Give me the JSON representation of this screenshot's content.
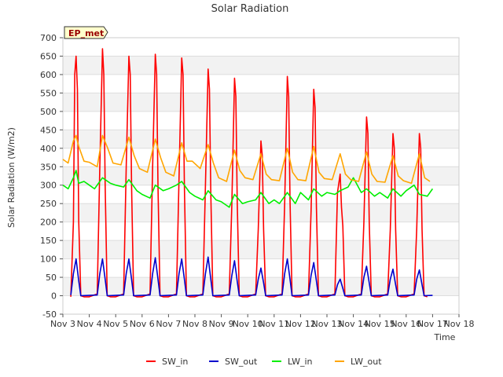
{
  "chart_data": {
    "type": "line",
    "title": "Solar Radiation",
    "xlabel": "Time",
    "ylabel": "Solar Radiation (W/m2)",
    "site_badge": "EP_met",
    "xlim": [
      3,
      18
    ],
    "ylim": [
      -50,
      700
    ],
    "x_ticks": [
      3,
      4,
      5,
      6,
      7,
      8,
      9,
      10,
      11,
      12,
      13,
      14,
      15,
      16,
      17,
      18
    ],
    "x_tick_labels": [
      "Nov 3",
      "Nov 4",
      "Nov 5",
      "Nov 6",
      "Nov 7",
      "Nov 8",
      "Nov 9",
      "Nov 10",
      "Nov 11",
      "Nov 12",
      "Nov 13",
      "Nov 14",
      "Nov 15",
      "Nov 16",
      "Nov 17",
      "Nov 18"
    ],
    "y_ticks": [
      -50,
      0,
      50,
      100,
      150,
      200,
      250,
      300,
      350,
      400,
      450,
      500,
      550,
      600,
      650,
      700
    ],
    "y_tick_labels": [
      "-50",
      "0",
      "50",
      "100",
      "150",
      "200",
      "250",
      "300",
      "350",
      "400",
      "450",
      "500",
      "550",
      "600",
      "650",
      "700"
    ],
    "grid": true,
    "legend_position": "bottom",
    "x_unit_note": "x values are fractional days of November",
    "series": [
      {
        "name": "SW_in",
        "color": "#ff0000",
        "x": [
          3.3,
          3.4,
          3.45,
          3.5,
          3.55,
          3.6,
          3.68,
          3.8,
          4.0,
          4.3,
          4.4,
          4.5,
          4.55,
          4.6,
          4.68,
          4.8,
          5.0,
          5.3,
          5.4,
          5.5,
          5.55,
          5.6,
          5.68,
          5.8,
          6.0,
          6.3,
          6.4,
          6.5,
          6.55,
          6.6,
          6.68,
          6.8,
          7.0,
          7.3,
          7.4,
          7.5,
          7.55,
          7.6,
          7.68,
          7.8,
          8.0,
          8.3,
          8.4,
          8.5,
          8.55,
          8.6,
          8.68,
          8.8,
          9.0,
          9.3,
          9.4,
          9.5,
          9.55,
          9.6,
          9.68,
          9.8,
          10.0,
          10.3,
          10.4,
          10.5,
          10.55,
          10.6,
          10.68,
          10.8,
          11.0,
          11.3,
          11.4,
          11.5,
          11.55,
          11.6,
          11.68,
          11.8,
          12.0,
          12.3,
          12.4,
          12.5,
          12.55,
          12.6,
          12.68,
          12.8,
          13.0,
          13.3,
          13.4,
          13.5,
          13.55,
          13.6,
          13.68,
          13.8,
          14.0,
          14.3,
          14.4,
          14.5,
          14.55,
          14.6,
          14.68,
          14.8,
          15.0,
          15.3,
          15.4,
          15.5,
          15.55,
          15.6,
          15.68,
          15.8,
          16.0,
          16.3,
          16.4,
          16.5,
          16.55,
          16.6,
          16.68,
          16.8
        ],
        "y": [
          -3,
          200,
          600,
          650,
          560,
          200,
          0,
          -3,
          -3,
          5,
          350,
          670,
          600,
          300,
          0,
          -3,
          -3,
          5,
          350,
          650,
          600,
          300,
          0,
          -3,
          -3,
          5,
          350,
          655,
          600,
          300,
          0,
          -3,
          -3,
          5,
          320,
          645,
          600,
          300,
          0,
          -3,
          -3,
          5,
          300,
          615,
          560,
          280,
          0,
          -3,
          -3,
          5,
          250,
          590,
          540,
          260,
          0,
          -3,
          -3,
          5,
          180,
          420,
          380,
          180,
          0,
          -3,
          -3,
          5,
          250,
          595,
          540,
          260,
          0,
          -3,
          -3,
          5,
          230,
          560,
          510,
          240,
          0,
          -3,
          -3,
          5,
          280,
          330,
          240,
          190,
          0,
          -3,
          -3,
          5,
          200,
          485,
          440,
          200,
          0,
          -3,
          -3,
          5,
          180,
          440,
          400,
          180,
          0,
          -3,
          -3,
          5,
          180,
          440,
          400,
          180,
          0,
          -3
        ]
      },
      {
        "name": "SW_out",
        "color": "#0000cc",
        "x": [
          3.3,
          3.4,
          3.5,
          3.6,
          3.68,
          4.0,
          4.3,
          4.4,
          4.5,
          4.6,
          4.68,
          5.0,
          5.3,
          5.4,
          5.5,
          5.6,
          5.68,
          6.0,
          6.3,
          6.4,
          6.5,
          6.6,
          6.68,
          7.0,
          7.3,
          7.4,
          7.5,
          7.6,
          7.68,
          8.0,
          8.3,
          8.4,
          8.5,
          8.6,
          8.68,
          9.0,
          9.3,
          9.4,
          9.5,
          9.6,
          9.68,
          10.0,
          10.3,
          10.4,
          10.5,
          10.6,
          10.68,
          11.0,
          11.3,
          11.4,
          11.5,
          11.6,
          11.68,
          12.0,
          12.3,
          12.4,
          12.5,
          12.6,
          12.68,
          13.0,
          13.3,
          13.4,
          13.5,
          13.6,
          13.68,
          14.0,
          14.3,
          14.4,
          14.5,
          14.6,
          14.68,
          15.0,
          15.3,
          15.4,
          15.5,
          15.6,
          15.68,
          16.0,
          16.3,
          16.4,
          16.5,
          16.6,
          16.68,
          17.0
        ],
        "y": [
          2,
          60,
          100,
          40,
          0,
          1,
          2,
          60,
          100,
          45,
          0,
          1,
          2,
          60,
          100,
          45,
          0,
          1,
          2,
          60,
          103,
          45,
          0,
          1,
          2,
          60,
          100,
          45,
          0,
          1,
          2,
          60,
          105,
          45,
          0,
          1,
          2,
          55,
          95,
          40,
          0,
          1,
          2,
          45,
          75,
          35,
          0,
          1,
          2,
          60,
          100,
          45,
          0,
          1,
          2,
          55,
          90,
          40,
          0,
          1,
          2,
          30,
          45,
          20,
          0,
          1,
          2,
          50,
          80,
          35,
          0,
          1,
          2,
          45,
          72,
          30,
          0,
          1,
          2,
          45,
          70,
          30,
          0,
          1
        ]
      },
      {
        "name": "LW_in",
        "color": "#00ee00",
        "x": [
          3.0,
          3.2,
          3.4,
          3.5,
          3.6,
          3.8,
          4.0,
          4.2,
          4.5,
          4.8,
          5.0,
          5.3,
          5.5,
          5.8,
          6.0,
          6.3,
          6.5,
          6.8,
          7.0,
          7.3,
          7.5,
          7.8,
          8.0,
          8.3,
          8.5,
          8.8,
          9.0,
          9.3,
          9.5,
          9.8,
          10.0,
          10.3,
          10.5,
          10.8,
          11.0,
          11.2,
          11.5,
          11.8,
          12.0,
          12.3,
          12.5,
          12.8,
          13.0,
          13.3,
          13.5,
          13.8,
          14.0,
          14.3,
          14.5,
          14.8,
          15.0,
          15.3,
          15.5,
          15.8,
          16.0,
          16.3,
          16.5,
          16.8,
          17.0
        ],
        "y": [
          300,
          290,
          320,
          340,
          305,
          310,
          300,
          290,
          320,
          305,
          300,
          295,
          315,
          285,
          275,
          265,
          300,
          285,
          290,
          300,
          310,
          280,
          270,
          260,
          285,
          260,
          255,
          240,
          275,
          250,
          255,
          260,
          280,
          250,
          260,
          250,
          280,
          250,
          280,
          260,
          290,
          270,
          280,
          275,
          285,
          295,
          320,
          280,
          290,
          270,
          280,
          265,
          290,
          270,
          285,
          300,
          275,
          270,
          290
        ]
      },
      {
        "name": "LW_out",
        "color": "#ffa500",
        "x": [
          3.0,
          3.2,
          3.4,
          3.5,
          3.6,
          3.8,
          4.0,
          4.3,
          4.5,
          4.7,
          4.9,
          5.2,
          5.5,
          5.7,
          5.9,
          6.2,
          6.5,
          6.7,
          6.9,
          7.2,
          7.5,
          7.7,
          7.9,
          8.2,
          8.5,
          8.7,
          8.9,
          9.2,
          9.5,
          9.7,
          9.9,
          10.2,
          10.5,
          10.7,
          10.9,
          11.2,
          11.5,
          11.7,
          11.9,
          12.2,
          12.5,
          12.7,
          12.9,
          13.2,
          13.5,
          13.7,
          13.9,
          14.2,
          14.5,
          14.7,
          14.9,
          15.2,
          15.5,
          15.7,
          15.9,
          16.2,
          16.5,
          16.7,
          16.9
        ],
        "y": [
          370,
          360,
          420,
          435,
          405,
          365,
          362,
          350,
          435,
          400,
          360,
          355,
          430,
          380,
          345,
          335,
          425,
          375,
          335,
          325,
          415,
          365,
          365,
          345,
          410,
          360,
          320,
          310,
          395,
          340,
          320,
          315,
          385,
          330,
          315,
          312,
          400,
          335,
          315,
          312,
          405,
          335,
          318,
          315,
          385,
          330,
          315,
          310,
          390,
          330,
          310,
          308,
          380,
          325,
          312,
          305,
          385,
          320,
          310
        ]
      }
    ]
  }
}
